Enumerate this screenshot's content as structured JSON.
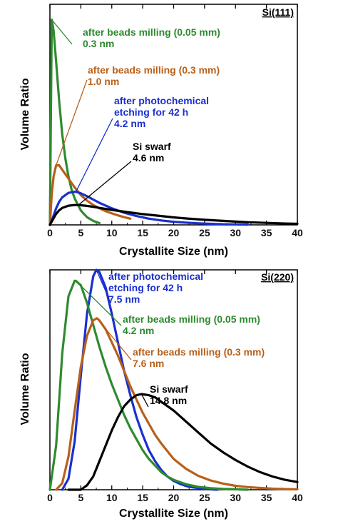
{
  "chart_data": [
    {
      "type": "line",
      "panel_label": "Si(111)",
      "xlabel": "Crystallite Size (nm)",
      "ylabel": "Volume Ratio",
      "xlim": [
        0,
        40
      ],
      "xticks": [
        0,
        5,
        10,
        15,
        20,
        25,
        30,
        35,
        40
      ],
      "ylim": [
        0,
        1
      ],
      "y_ticks_shown": false,
      "series": [
        {
          "label_lines": [
            "after beads milling (0.05 mm)",
            "0.3 nm"
          ],
          "color": "#2e8b2e",
          "x": [
            0,
            0.3,
            0.6,
            1,
            1.5,
            2,
            2.5,
            3,
            3.5,
            4,
            5,
            6,
            7,
            8
          ],
          "y": [
            0.0,
            0.93,
            0.88,
            0.74,
            0.56,
            0.41,
            0.3,
            0.22,
            0.16,
            0.12,
            0.065,
            0.035,
            0.018,
            0.008
          ]
        },
        {
          "label_lines": [
            "after beads milling (0.3 mm)",
            "1.0 nm"
          ],
          "color": "#b8601a",
          "x": [
            0,
            0.3,
            0.6,
            1,
            1.5,
            2,
            3,
            4,
            5,
            6,
            7,
            8,
            9,
            10,
            11,
            12,
            13
          ],
          "y": [
            0.0,
            0.14,
            0.22,
            0.27,
            0.27,
            0.25,
            0.21,
            0.17,
            0.135,
            0.11,
            0.09,
            0.075,
            0.062,
            0.052,
            0.043,
            0.035,
            0.028
          ]
        },
        {
          "label_lines": [
            "after photochemical",
            "etching for 42 h",
            "4.2 nm"
          ],
          "color": "#1a2fd0",
          "x": [
            0,
            0.5,
            1,
            1.5,
            2,
            3,
            4,
            4.5,
            5,
            6,
            7,
            8,
            10,
            12,
            14,
            16,
            18,
            20,
            22,
            24,
            26,
            28,
            30,
            32
          ],
          "y": [
            0.0,
            0.035,
            0.075,
            0.105,
            0.125,
            0.145,
            0.15,
            0.148,
            0.143,
            0.13,
            0.115,
            0.1,
            0.075,
            0.055,
            0.04,
            0.028,
            0.02,
            0.014,
            0.01,
            0.007,
            0.005,
            0.003,
            0.002,
            0.001
          ]
        },
        {
          "label_lines": [
            "Si swarf",
            "4.6 nm"
          ],
          "color": "#000000",
          "x": [
            0,
            0.5,
            1,
            1.5,
            2,
            3,
            4,
            4.6,
            5,
            6,
            7,
            8,
            10,
            12,
            15,
            18,
            20,
            22,
            25,
            28,
            30,
            32,
            35,
            38,
            40
          ],
          "y": [
            0.0,
            0.025,
            0.05,
            0.066,
            0.077,
            0.087,
            0.09,
            0.09,
            0.089,
            0.086,
            0.082,
            0.077,
            0.068,
            0.06,
            0.049,
            0.04,
            0.034,
            0.029,
            0.023,
            0.018,
            0.015,
            0.012,
            0.009,
            0.006,
            0.005
          ]
        }
      ]
    },
    {
      "type": "line",
      "panel_label": "Si(220)",
      "xlabel": "Crystallite Size (nm)",
      "ylabel": "Volume Ratio",
      "xlim": [
        0,
        40
      ],
      "xticks": [
        0,
        5,
        10,
        15,
        20,
        25,
        30,
        35,
        40
      ],
      "ylim": [
        0,
        1
      ],
      "y_ticks_shown": false,
      "series": [
        {
          "label_lines": [
            "after photochemical",
            "etching for 42 h",
            "7.5 nm"
          ],
          "color": "#1a2fd0",
          "x": [
            2,
            3,
            4,
            5,
            6,
            7,
            7.5,
            8,
            9,
            10,
            11,
            12,
            13,
            14,
            15,
            16,
            17,
            18,
            19,
            20,
            21,
            22,
            23,
            24,
            25,
            26,
            27
          ],
          "y": [
            0.0,
            0.05,
            0.22,
            0.52,
            0.8,
            0.97,
            1.0,
            0.99,
            0.92,
            0.8,
            0.67,
            0.54,
            0.43,
            0.33,
            0.25,
            0.18,
            0.13,
            0.09,
            0.06,
            0.04,
            0.027,
            0.017,
            0.011,
            0.007,
            0.004,
            0.002,
            0.0
          ]
        },
        {
          "label_lines": [
            "after beads milling (0.05 mm)",
            "4.2 nm"
          ],
          "color": "#2e8b2e",
          "x": [
            0,
            1,
            2,
            3,
            4,
            4.2,
            5,
            6,
            7,
            8,
            9,
            10,
            11,
            12,
            13,
            14,
            15,
            16,
            17,
            18,
            19,
            20,
            22,
            24,
            26,
            28,
            30,
            32
          ],
          "y": [
            0.0,
            0.2,
            0.62,
            0.88,
            0.95,
            0.95,
            0.93,
            0.85,
            0.75,
            0.65,
            0.56,
            0.48,
            0.41,
            0.34,
            0.28,
            0.23,
            0.18,
            0.14,
            0.11,
            0.08,
            0.06,
            0.045,
            0.025,
            0.013,
            0.007,
            0.004,
            0.002,
            0.0
          ]
        },
        {
          "label_lines": [
            "after beads milling (0.3 mm)",
            "7.6 nm"
          ],
          "color": "#b8601a",
          "x": [
            1,
            2,
            3,
            4,
            5,
            6,
            7,
            7.6,
            8,
            9,
            10,
            11,
            12,
            13,
            14,
            15,
            16,
            17,
            18,
            20,
            22,
            24,
            26,
            28,
            30,
            32,
            34,
            36,
            38,
            40
          ],
          "y": [
            0.0,
            0.03,
            0.15,
            0.36,
            0.56,
            0.7,
            0.77,
            0.78,
            0.77,
            0.73,
            0.67,
            0.61,
            0.54,
            0.47,
            0.41,
            0.35,
            0.3,
            0.25,
            0.21,
            0.14,
            0.095,
            0.063,
            0.042,
            0.028,
            0.018,
            0.012,
            0.008,
            0.005,
            0.003,
            0.002
          ]
        },
        {
          "label_lines": [
            "Si swarf",
            "14.8 nm"
          ],
          "color": "#000000",
          "x": [
            3,
            5,
            6,
            7,
            8,
            9,
            10,
            11,
            12,
            13,
            14,
            14.8,
            16,
            17,
            18,
            20,
            22,
            24,
            26,
            28,
            30,
            32,
            34,
            36,
            38,
            40
          ],
          "y": [
            0.0,
            0.0,
            0.02,
            0.06,
            0.13,
            0.2,
            0.27,
            0.33,
            0.38,
            0.41,
            0.43,
            0.435,
            0.43,
            0.42,
            0.4,
            0.36,
            0.31,
            0.26,
            0.21,
            0.17,
            0.135,
            0.105,
            0.08,
            0.06,
            0.045,
            0.035
          ]
        }
      ]
    }
  ]
}
